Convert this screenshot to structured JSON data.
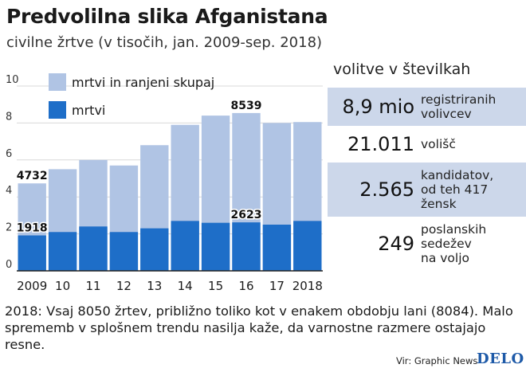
{
  "title": "Predvolilna slika Afganistana",
  "subtitle": "civilne žrtve (v tisočih, jan. 2009-sep. 2018)",
  "chart_data": {
    "type": "bar",
    "categories": [
      "2009",
      "10",
      "11",
      "12",
      "13",
      "14",
      "15",
      "16",
      "17",
      "2018"
    ],
    "series": [
      {
        "name": "mrtvi in ranjeni skupaj",
        "values": [
          4.732,
          5.5,
          6.0,
          5.7,
          6.8,
          7.9,
          8.4,
          8.539,
          8.0,
          8.05
        ],
        "color": "#b0c4e4"
      },
      {
        "name": "mrtvi",
        "values": [
          1.918,
          2.1,
          2.4,
          2.1,
          2.3,
          2.7,
          2.6,
          2.623,
          2.5,
          2.7
        ],
        "color": "#1e6ec8"
      }
    ],
    "data_labels": [
      {
        "category": "2009",
        "series": "mrtvi in ranjeni skupaj",
        "text": "4732"
      },
      {
        "category": "2009",
        "series": "mrtvi",
        "text": "1918"
      },
      {
        "category": "16",
        "series": "mrtvi in ranjeni skupaj",
        "text": "8539"
      },
      {
        "category": "16",
        "series": "mrtvi",
        "text": "2623"
      }
    ],
    "yticks": [
      "0",
      "2",
      "4",
      "6",
      "8",
      "10"
    ],
    "ylim": [
      0,
      10
    ],
    "grid": true,
    "legend": "top-left, inside plot"
  },
  "stats_panel": {
    "title": "volitve v številkah",
    "items": [
      {
        "value": "8,9 mio",
        "label": [
          "registriranih",
          "volivcev"
        ]
      },
      {
        "value": "21.011",
        "label": [
          "volišč"
        ]
      },
      {
        "value": "2.565",
        "label": [
          "kandidatov,",
          "od teh 417",
          "žensk"
        ]
      },
      {
        "value": "249",
        "label": [
          "poslanskih",
          "sedežev",
          "na voljo"
        ]
      }
    ]
  },
  "footnote": "2018: Vsaj 8050 žrtev, približno toliko kot v enakem obdobju lani (8084). Malo sprememb v splošnem trendu nasilja kaže, da varnostne razmere ostajajo resne.",
  "source": "Vir: Graphic News",
  "logo": "DELO",
  "colors": {
    "panel_shade": "#ccd7ea",
    "grid": "#d9d9d9",
    "axis": "#222222"
  }
}
